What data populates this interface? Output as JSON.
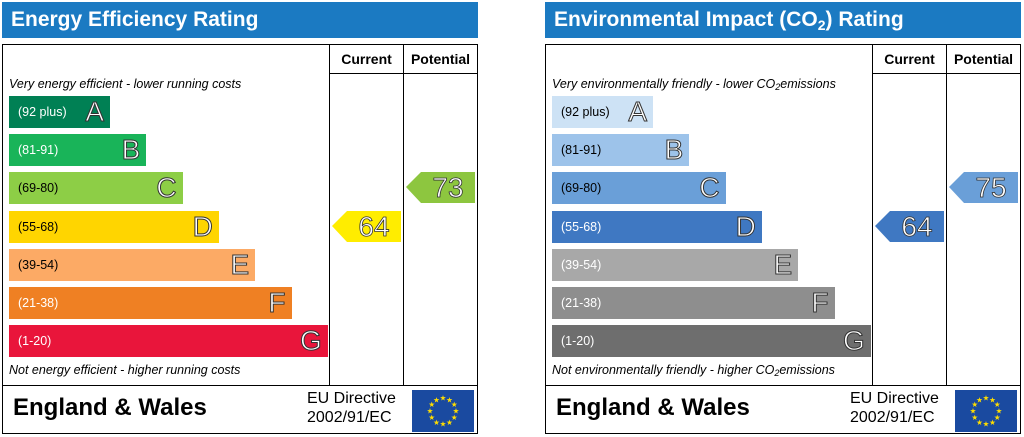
{
  "energy": {
    "title": "Energy Efficiency Rating",
    "header_current": "Current",
    "header_potential": "Potential",
    "top_caption": "Very energy efficient - lower running costs",
    "bottom_caption": "Not energy efficient - higher running costs",
    "bands": [
      {
        "range": "(92 plus)",
        "letter": "A",
        "color": "#008054"
      },
      {
        "range": "(81-91)",
        "letter": "B",
        "color": "#19b459"
      },
      {
        "range": "(69-80)",
        "letter": "C",
        "color": "#8dce46"
      },
      {
        "range": "(55-68)",
        "letter": "D",
        "color": "#ffd500"
      },
      {
        "range": "(39-54)",
        "letter": "E",
        "color": "#fcaa65"
      },
      {
        "range": "(21-38)",
        "letter": "F",
        "color": "#ef8023"
      },
      {
        "range": "(1-20)",
        "letter": "G",
        "color": "#e9153b"
      }
    ],
    "current": {
      "value": "64",
      "band": "D",
      "color": "#ffed00"
    },
    "potential": {
      "value": "73",
      "band": "C",
      "color": "#8dc63f"
    },
    "country": "England & Wales",
    "directive_line1": "EU Directive",
    "directive_line2": "2002/91/EC"
  },
  "environment": {
    "title_prefix": "Environmental Impact (CO",
    "title_sub": "2",
    "title_suffix": ") Rating",
    "header_current": "Current",
    "header_potential": "Potential",
    "top_caption_prefix": "Very environmentally friendly - lower CO",
    "top_caption_sub": "2",
    "top_caption_suffix": "emissions",
    "bottom_caption_prefix": "Not environmentally friendly - higher CO",
    "bottom_caption_sub": "2",
    "bottom_caption_suffix": "emissions",
    "bands": [
      {
        "range": "(92 plus)",
        "letter": "A",
        "color": "#cde2f5"
      },
      {
        "range": "(81-91)",
        "letter": "B",
        "color": "#9dc3ea"
      },
      {
        "range": "(69-80)",
        "letter": "C",
        "color": "#6a9fd8"
      },
      {
        "range": "(55-68)",
        "letter": "D",
        "color": "#3f78c2"
      },
      {
        "range": "(39-54)",
        "letter": "E",
        "color": "#a8a8a8"
      },
      {
        "range": "(21-38)",
        "letter": "F",
        "color": "#8e8e8e"
      },
      {
        "range": "(1-20)",
        "letter": "G",
        "color": "#6e6e6e"
      }
    ],
    "current": {
      "value": "64",
      "band": "D",
      "color": "#3f78c2"
    },
    "potential": {
      "value": "75",
      "band": "C",
      "color": "#6a9fd8"
    },
    "country": "England & Wales",
    "directive_line1": "EU Directive",
    "directive_line2": "2002/91/EC"
  },
  "colors": {
    "title_bar": "#1b7ac2",
    "flag_blue": "#1a4aa0",
    "flag_star": "#ffdd00"
  }
}
